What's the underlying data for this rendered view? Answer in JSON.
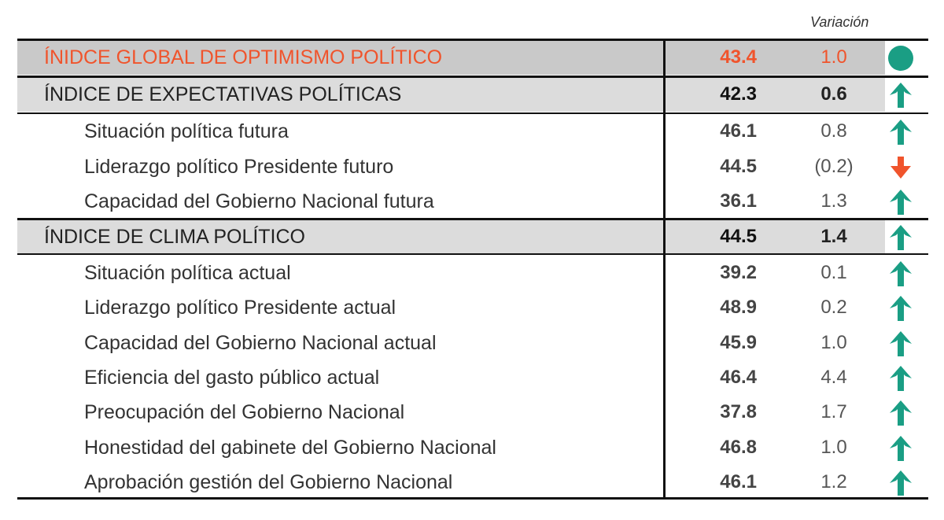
{
  "header": {
    "variation_label": "Variación"
  },
  "colors": {
    "accent_orange": "#f0542c",
    "up_teal": "#1a9e84",
    "band_dark": "#c9c9c9",
    "band_light": "#dcdcdc"
  },
  "rows": [
    {
      "label": "ÍNIDCE GLOBAL DE OPTIMISMO POLÍTICO",
      "value": "43.4",
      "variation": "1.0",
      "icon": "circle-icon",
      "level": "global"
    },
    {
      "label": "ÍNDICE DE EXPECTATIVAS POLÍTICAS",
      "value": "42.3",
      "variation": "0.6",
      "icon": "arrow-up-icon",
      "level": "index"
    },
    {
      "label": "Situación política futura",
      "value": "46.1",
      "variation": "0.8",
      "icon": "arrow-up-icon",
      "level": "sub"
    },
    {
      "label": "Liderazgo político Presidente futuro",
      "value": "44.5",
      "variation": "(0.2)",
      "icon": "arrow-down-icon",
      "level": "sub"
    },
    {
      "label": "Capacidad del Gobierno Nacional futura",
      "value": "36.1",
      "variation": "1.3",
      "icon": "arrow-up-icon",
      "level": "sub"
    },
    {
      "label": "ÍNDICE DE CLIMA POLÍTICO",
      "value": "44.5",
      "variation": "1.4",
      "icon": "arrow-up-icon",
      "level": "index"
    },
    {
      "label": "Situación política actual",
      "value": "39.2",
      "variation": "0.1",
      "icon": "arrow-up-icon",
      "level": "sub"
    },
    {
      "label": "Liderazgo político Presidente actual",
      "value": "48.9",
      "variation": "0.2",
      "icon": "arrow-up-icon",
      "level": "sub"
    },
    {
      "label": "Capacidad del Gobierno Nacional actual",
      "value": "45.9",
      "variation": "1.0",
      "icon": "arrow-up-icon",
      "level": "sub"
    },
    {
      "label": "Eficiencia del gasto público actual",
      "value": "46.4",
      "variation": "4.4",
      "icon": "arrow-up-icon",
      "level": "sub"
    },
    {
      "label": "Preocupación del Gobierno Nacional",
      "value": "37.8",
      "variation": "1.7",
      "icon": "arrow-up-icon",
      "level": "sub"
    },
    {
      "label": "Honestidad del gabinete del Gobierno Nacional",
      "value": "46.8",
      "variation": "1.0",
      "icon": "arrow-up-icon",
      "level": "sub"
    },
    {
      "label": "Aprobación gestión del Gobierno Nacional",
      "value": "46.1",
      "variation": "1.2",
      "icon": "arrow-up-icon",
      "level": "sub"
    }
  ]
}
